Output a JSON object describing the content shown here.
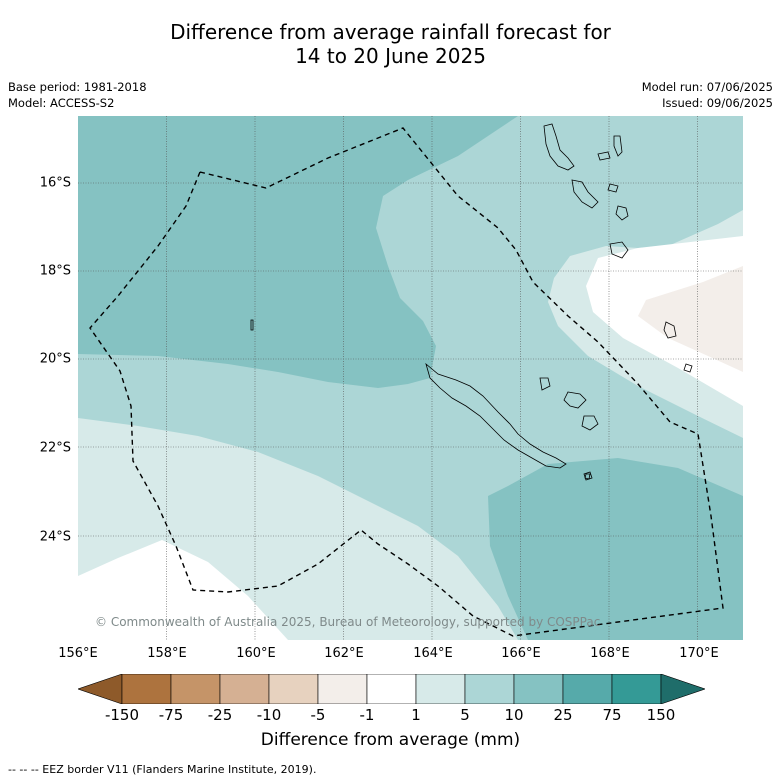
{
  "title_line1": "Difference from average rainfall forecast for",
  "title_line2": "14 to 20 June 2025",
  "base_period": "Base period: 1981-2018",
  "model": "Model: ACCESS-S2",
  "model_run": "Model run: 07/06/2025",
  "issued": "Issued: 09/06/2025",
  "lat_labels": [
    "16°S",
    "18°S",
    "20°S",
    "22°S",
    "24°S"
  ],
  "lon_labels": [
    "156°E",
    "158°E",
    "160°E",
    "162°E",
    "164°E",
    "166°E",
    "168°E",
    "170°E"
  ],
  "colorbar": {
    "labels": [
      "-150",
      "-75",
      "-25",
      "-10",
      "-5",
      "-1",
      "1",
      "5",
      "10",
      "25",
      "75",
      "150"
    ],
    "colors": [
      "#8e5a2a",
      "#ad733e",
      "#c59468",
      "#d5b093",
      "#e7d2bf",
      "#f3eeea",
      "#ffffff",
      "#d7eae9",
      "#acd6d6",
      "#85c2c2",
      "#56aaaa",
      "#349a96",
      "#1f6d6a"
    ],
    "title": "Difference from average (mm)"
  },
  "copyright": "© Commonwealth of Australia 2025, Bureau of Meteorology, supported by COSPPac",
  "footer": "--  --  -- EEZ border V11 (Flanders Marine Institute, 2019)."
}
